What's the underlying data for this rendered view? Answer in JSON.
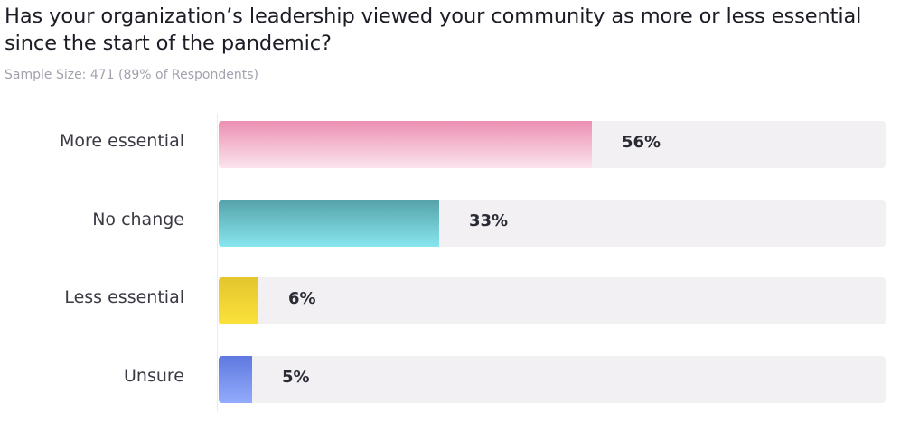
{
  "title": "Has your organization’s leadership viewed your community as more or less essential since the start of the pandemic?",
  "subtitle": "Sample Size: 471 (89% of Respondents)",
  "chart_data": {
    "type": "bar",
    "orientation": "horizontal",
    "categories": [
      "More essential",
      "No change",
      "Less essential",
      "Unsure"
    ],
    "values": [
      56,
      33,
      6,
      5
    ],
    "value_labels": [
      "56%",
      "33%",
      "6%",
      "5%"
    ],
    "xlim": [
      0,
      100
    ],
    "colors": [
      [
        "#ec8fb2",
        "#fbe4ee"
      ],
      [
        "#56a2a9",
        "#87e6ee"
      ],
      [
        "#e3c52d",
        "#fbe23a"
      ],
      [
        "#5e79df",
        "#93abfc"
      ]
    ]
  }
}
